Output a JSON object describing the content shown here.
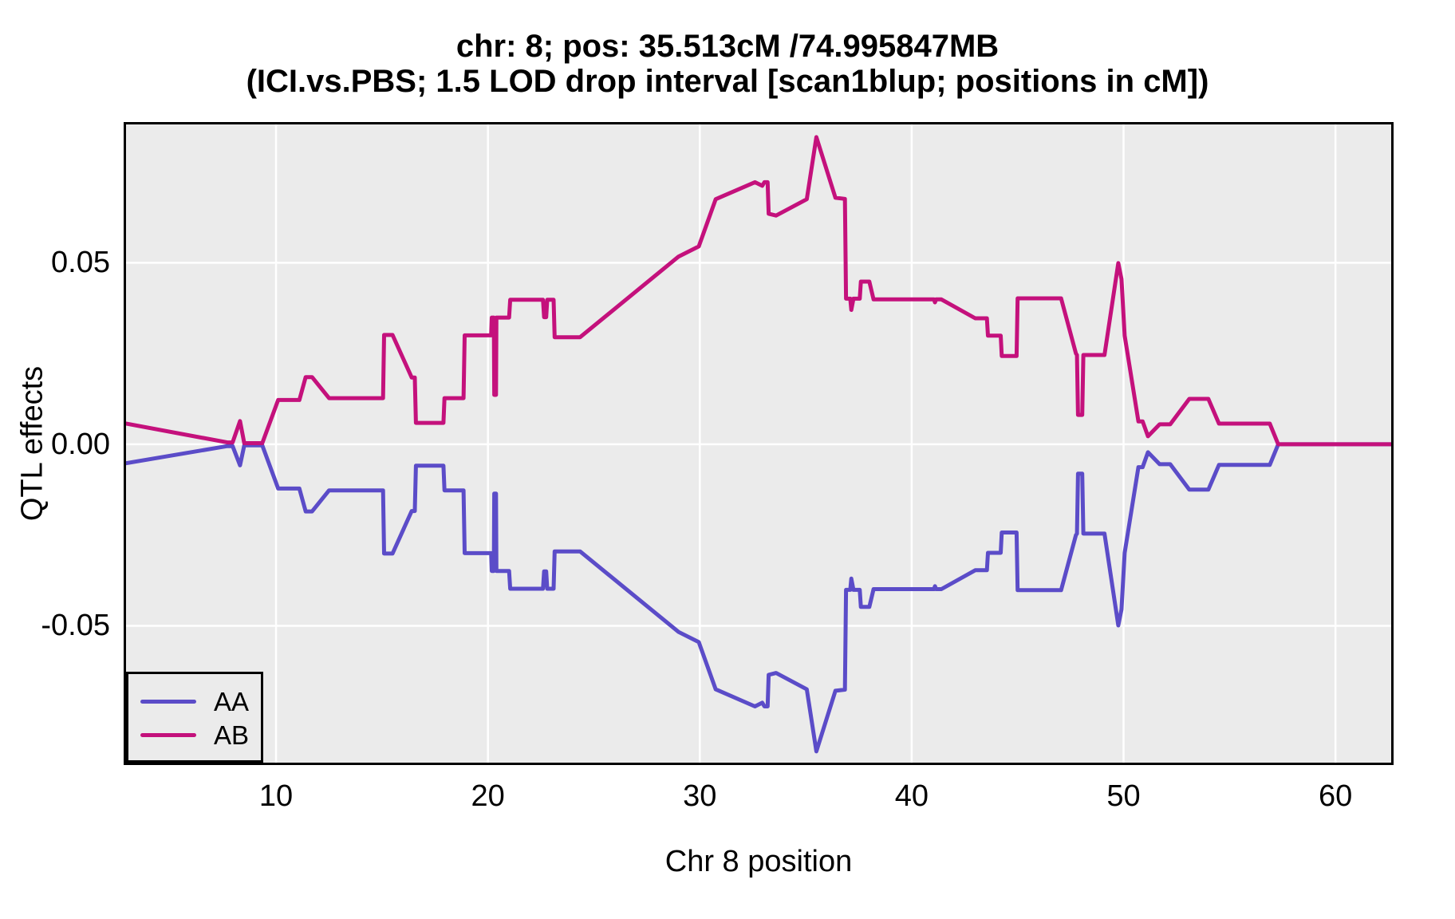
{
  "title": {
    "line1": "chr: 8; pos: 35.513cM /74.995847MB",
    "line2": "(ICI.vs.PBS; 1.5 LOD drop interval [scan1blup; positions in cM])"
  },
  "colors": {
    "panel_background": "#EBEBEB",
    "gridline": "#FFFFFF",
    "panel_border": "#000000",
    "text": "#000000",
    "aa_line": "#5B4CC8",
    "ab_line": "#C4117C"
  },
  "legend": {
    "entries": [
      {
        "label": "AA",
        "color": "#5B4CC8"
      },
      {
        "label": "AB",
        "color": "#C4117C"
      }
    ]
  },
  "chart_data": {
    "type": "line",
    "title": "chr: 8; pos: 35.513cM /74.995847MB (ICI.vs.PBS; 1.5 LOD drop interval [scan1blup; positions in cM])",
    "xlabel": "Chr 8 position",
    "ylabel": "QTL effects",
    "xlim": [
      2.92,
      62.63
    ],
    "ylim": [
      -0.0877,
      0.0881
    ],
    "grid": "on",
    "legend_position": "bottom-left",
    "x_ticks": [
      {
        "value": 10,
        "label": "10"
      },
      {
        "value": 20,
        "label": "20"
      },
      {
        "value": 30,
        "label": "30"
      },
      {
        "value": 40,
        "label": "40"
      },
      {
        "value": 50,
        "label": "50"
      },
      {
        "value": 60,
        "label": "60"
      }
    ],
    "y_ticks": [
      {
        "value": 0.05,
        "label": "0.05"
      },
      {
        "value": 0.0,
        "label": "0.00"
      },
      {
        "value": -0.05,
        "label": "-0.05"
      }
    ],
    "series": [
      {
        "name": "AA",
        "color": "#5B4CC8",
        "points": [
          [
            2.92,
            -0.0052
          ],
          [
            7.7,
            -0.0005
          ],
          [
            7.95,
            -0.0005
          ],
          [
            8.3,
            -0.0058
          ],
          [
            8.5,
            -0.0003
          ],
          [
            9.35,
            -0.0003
          ],
          [
            10.1,
            -0.0122
          ],
          [
            11.1,
            -0.0122
          ],
          [
            11.4,
            -0.0185
          ],
          [
            11.7,
            -0.0185
          ],
          [
            12.5,
            -0.0127
          ],
          [
            15.05,
            -0.0127
          ],
          [
            15.1,
            -0.0301
          ],
          [
            15.5,
            -0.0301
          ],
          [
            16.4,
            -0.0184
          ],
          [
            16.55,
            -0.0184
          ],
          [
            16.6,
            -0.0059
          ],
          [
            17.9,
            -0.0059
          ],
          [
            17.95,
            -0.0127
          ],
          [
            18.85,
            -0.0127
          ],
          [
            18.9,
            -0.03
          ],
          [
            20.15,
            -0.03
          ],
          [
            20.18,
            -0.0349
          ],
          [
            20.28,
            -0.0349
          ],
          [
            20.3,
            -0.0136
          ],
          [
            20.38,
            -0.0136
          ],
          [
            20.4,
            -0.0349
          ],
          [
            21.0,
            -0.0349
          ],
          [
            21.05,
            -0.0398
          ],
          [
            22.6,
            -0.0398
          ],
          [
            22.65,
            -0.035
          ],
          [
            22.75,
            -0.035
          ],
          [
            22.8,
            -0.0398
          ],
          [
            23.1,
            -0.0398
          ],
          [
            23.15,
            -0.0295
          ],
          [
            24.35,
            -0.0295
          ],
          [
            29.0,
            -0.0517
          ],
          [
            29.95,
            -0.0545
          ],
          [
            30.75,
            -0.0675
          ],
          [
            32.6,
            -0.0722
          ],
          [
            32.95,
            -0.0712
          ],
          [
            33.05,
            -0.0722
          ],
          [
            33.2,
            -0.0722
          ],
          [
            33.25,
            -0.0635
          ],
          [
            33.6,
            -0.063
          ],
          [
            35.05,
            -0.0675
          ],
          [
            35.5,
            -0.0846
          ],
          [
            36.4,
            -0.0679
          ],
          [
            36.85,
            -0.0676
          ],
          [
            36.9,
            -0.0401
          ],
          [
            37.1,
            -0.0401
          ],
          [
            37.15,
            -0.037
          ],
          [
            37.25,
            -0.0401
          ],
          [
            37.55,
            -0.0401
          ],
          [
            37.6,
            -0.0448
          ],
          [
            38.0,
            -0.0448
          ],
          [
            38.2,
            -0.0399
          ],
          [
            41.05,
            -0.0399
          ],
          [
            41.1,
            -0.0391
          ],
          [
            41.15,
            -0.0399
          ],
          [
            41.4,
            -0.0399
          ],
          [
            43.0,
            -0.0347
          ],
          [
            43.55,
            -0.0347
          ],
          [
            43.6,
            -0.0299
          ],
          [
            44.2,
            -0.0299
          ],
          [
            44.25,
            -0.0243
          ],
          [
            44.95,
            -0.0243
          ],
          [
            45.0,
            -0.0402
          ],
          [
            47.05,
            -0.0402
          ],
          [
            47.75,
            -0.025
          ],
          [
            47.8,
            -0.0246
          ],
          [
            47.85,
            -0.0081
          ],
          [
            48.05,
            -0.0081
          ],
          [
            48.1,
            -0.0246
          ],
          [
            49.1,
            -0.0246
          ],
          [
            49.75,
            -0.0499
          ],
          [
            49.9,
            -0.0455
          ],
          [
            50.05,
            -0.0299
          ],
          [
            50.7,
            -0.0063
          ],
          [
            50.9,
            -0.0063
          ],
          [
            51.15,
            -0.0022
          ],
          [
            51.7,
            -0.0055
          ],
          [
            52.2,
            -0.0055
          ],
          [
            53.1,
            -0.0125
          ],
          [
            54.0,
            -0.0125
          ],
          [
            54.5,
            -0.0057
          ],
          [
            56.9,
            -0.0057
          ],
          [
            57.3,
            0.0
          ],
          [
            62.6,
            0.0
          ]
        ]
      },
      {
        "name": "AB",
        "color": "#C4117C",
        "points": [
          [
            2.92,
            0.0057
          ],
          [
            7.7,
            0.0005
          ],
          [
            7.95,
            0.0005
          ],
          [
            8.3,
            0.0064
          ],
          [
            8.5,
            0.0003
          ],
          [
            9.35,
            0.0003
          ],
          [
            10.1,
            0.0122
          ],
          [
            11.1,
            0.0122
          ],
          [
            11.4,
            0.0185
          ],
          [
            11.7,
            0.0185
          ],
          [
            12.5,
            0.0127
          ],
          [
            15.05,
            0.0127
          ],
          [
            15.1,
            0.0301
          ],
          [
            15.5,
            0.0301
          ],
          [
            16.4,
            0.0184
          ],
          [
            16.55,
            0.0184
          ],
          [
            16.6,
            0.0059
          ],
          [
            17.9,
            0.0059
          ],
          [
            17.95,
            0.0127
          ],
          [
            18.85,
            0.0127
          ],
          [
            18.9,
            0.03
          ],
          [
            20.15,
            0.03
          ],
          [
            20.18,
            0.0349
          ],
          [
            20.28,
            0.0349
          ],
          [
            20.3,
            0.0136
          ],
          [
            20.38,
            0.0136
          ],
          [
            20.4,
            0.0349
          ],
          [
            21.0,
            0.0349
          ],
          [
            21.05,
            0.0398
          ],
          [
            22.6,
            0.0398
          ],
          [
            22.65,
            0.035
          ],
          [
            22.75,
            0.035
          ],
          [
            22.8,
            0.0398
          ],
          [
            23.1,
            0.0398
          ],
          [
            23.15,
            0.0295
          ],
          [
            24.35,
            0.0295
          ],
          [
            29.0,
            0.0517
          ],
          [
            29.95,
            0.0545
          ],
          [
            30.75,
            0.0675
          ],
          [
            32.6,
            0.0722
          ],
          [
            32.95,
            0.0712
          ],
          [
            33.05,
            0.0722
          ],
          [
            33.2,
            0.0722
          ],
          [
            33.25,
            0.0635
          ],
          [
            33.6,
            0.063
          ],
          [
            35.05,
            0.0675
          ],
          [
            35.5,
            0.0846
          ],
          [
            36.4,
            0.0679
          ],
          [
            36.85,
            0.0676
          ],
          [
            36.9,
            0.0401
          ],
          [
            37.1,
            0.0401
          ],
          [
            37.15,
            0.037
          ],
          [
            37.25,
            0.0401
          ],
          [
            37.55,
            0.0401
          ],
          [
            37.6,
            0.0448
          ],
          [
            38.0,
            0.0448
          ],
          [
            38.2,
            0.0399
          ],
          [
            41.05,
            0.0399
          ],
          [
            41.1,
            0.0391
          ],
          [
            41.15,
            0.0399
          ],
          [
            41.4,
            0.0399
          ],
          [
            43.0,
            0.0347
          ],
          [
            43.55,
            0.0347
          ],
          [
            43.6,
            0.0299
          ],
          [
            44.2,
            0.0299
          ],
          [
            44.25,
            0.0243
          ],
          [
            44.95,
            0.0243
          ],
          [
            45.0,
            0.0402
          ],
          [
            47.05,
            0.0402
          ],
          [
            47.75,
            0.025
          ],
          [
            47.8,
            0.0246
          ],
          [
            47.85,
            0.0081
          ],
          [
            48.05,
            0.0081
          ],
          [
            48.1,
            0.0246
          ],
          [
            49.1,
            0.0246
          ],
          [
            49.75,
            0.0499
          ],
          [
            49.9,
            0.0455
          ],
          [
            50.05,
            0.0299
          ],
          [
            50.7,
            0.0063
          ],
          [
            50.9,
            0.0063
          ],
          [
            51.15,
            0.0022
          ],
          [
            51.7,
            0.0055
          ],
          [
            52.2,
            0.0055
          ],
          [
            53.1,
            0.0125
          ],
          [
            54.0,
            0.0125
          ],
          [
            54.5,
            0.0057
          ],
          [
            56.9,
            0.0057
          ],
          [
            57.3,
            0.0
          ],
          [
            62.6,
            0.0
          ]
        ]
      }
    ]
  }
}
